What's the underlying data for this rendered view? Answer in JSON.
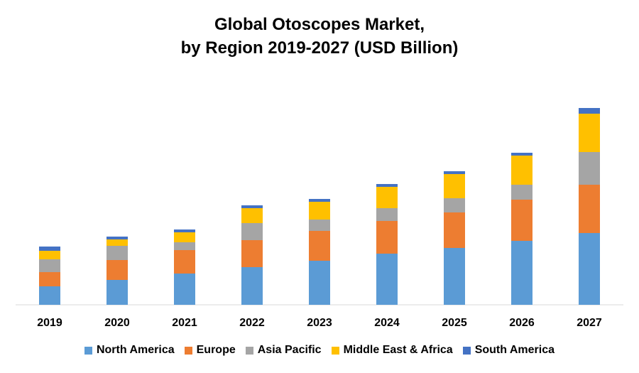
{
  "chart_data": {
    "type": "bar",
    "stacked": true,
    "title_line1": "Global Otoscopes Market,",
    "title_line2": "by Region 2019-2027 (USD Billion)",
    "categories": [
      "2019",
      "2020",
      "2021",
      "2022",
      "2023",
      "2024",
      "2025",
      "2026",
      "2027"
    ],
    "series": [
      {
        "name": "North America",
        "color": "#5B9BD5",
        "values": [
          26,
          35,
          44,
          53,
          62,
          72,
          80,
          90,
          101
        ]
      },
      {
        "name": "Europe",
        "color": "#ED7D31",
        "values": [
          20,
          28,
          33,
          38,
          42,
          46,
          50,
          58,
          68
        ]
      },
      {
        "name": "Asia Pacific",
        "color": "#A5A5A5",
        "values": [
          18,
          20,
          11,
          24,
          16,
          18,
          20,
          21,
          46
        ]
      },
      {
        "name": "Middle East & Africa",
        "color": "#FFC000",
        "values": [
          12,
          9,
          14,
          21,
          25,
          30,
          34,
          41,
          54
        ]
      },
      {
        "name": "South America",
        "color": "#4472C4",
        "values": [
          6,
          4,
          4,
          4,
          4,
          4,
          4,
          4,
          8
        ]
      }
    ],
    "ylim": [
      0,
      300
    ],
    "grid": false,
    "legend_position": "bottom"
  }
}
